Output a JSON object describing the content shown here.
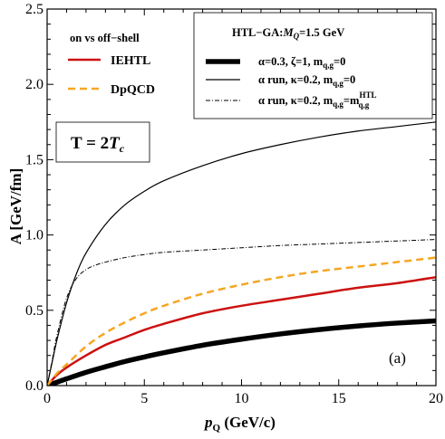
{
  "chart_data": {
    "type": "line",
    "xlabel_main": "p",
    "xlabel_sub": "Q",
    "xlabel_unit": " (GeV/c)",
    "ylabel": "A [GeV/fm]",
    "xlim": [
      0,
      20
    ],
    "ylim": [
      0,
      2.5
    ],
    "xticks": [
      "0",
      "5",
      "10",
      "15",
      "20"
    ],
    "yticks": [
      "0.0",
      "0.5",
      "1.0",
      "1.5",
      "2.0",
      "2.5"
    ],
    "panel_label": "(a)",
    "temperature_label": {
      "main": "T = 2",
      "var": "T",
      "sub": "c"
    },
    "legend_left": {
      "title": "on vs off−shell",
      "entries": [
        {
          "name": "IEHTL",
          "color": "#cc1111",
          "dash": "solid"
        },
        {
          "name": "DpQCD",
          "color": "#f5a623",
          "dash": "dashed"
        }
      ]
    },
    "legend_right": {
      "title_pre": "HTL−GA:",
      "title_var": "M",
      "title_sub": "Q",
      "title_post": "=1.5 GeV",
      "entries": [
        {
          "text": "α=0.3, ζ=1, m",
          "sub": "q,g",
          "post": "=0",
          "sup": "",
          "style": "thick"
        },
        {
          "text": "α run, κ=0.2, m",
          "sub": "q,g",
          "post": "=0",
          "sup": "",
          "style": "thin"
        },
        {
          "text": "α run, κ=0.2, m",
          "sub": "q,g",
          "post": "=m",
          "sup": "HTL",
          "sub2": "q,g",
          "style": "dashdot"
        }
      ]
    },
    "series": [
      {
        "name": "α=0.3, ζ=1, m_{q,g}=0",
        "color": "#000000",
        "width": 5.5,
        "dash": "",
        "x": [
          0,
          0.5,
          1,
          2,
          3,
          4,
          5,
          6,
          8,
          10,
          12,
          14,
          16,
          18,
          20
        ],
        "y": [
          0,
          0.022,
          0.045,
          0.088,
          0.125,
          0.16,
          0.19,
          0.218,
          0.268,
          0.308,
          0.343,
          0.372,
          0.396,
          0.415,
          0.43
        ]
      },
      {
        "name": "α run, κ=0.2, m_{q,g}=0",
        "color": "#000000",
        "width": 1.2,
        "dash": "",
        "x": [
          0,
          0.25,
          0.5,
          1,
          1.5,
          2,
          3,
          4,
          5,
          6,
          8,
          10,
          12,
          14,
          16,
          18,
          20
        ],
        "y": [
          0,
          0.15,
          0.3,
          0.55,
          0.74,
          0.88,
          1.07,
          1.2,
          1.29,
          1.36,
          1.46,
          1.54,
          1.6,
          1.65,
          1.69,
          1.72,
          1.75
        ]
      },
      {
        "name": "α run, κ=0.2, m_{q,g}=m_{q,g}^{HTL}",
        "color": "#000000",
        "width": 1.0,
        "dash": "5,2,1,2",
        "x": [
          0,
          0.25,
          0.5,
          1,
          1.5,
          2,
          2.5,
          3,
          4,
          5,
          6,
          8,
          10,
          12,
          14,
          16,
          18,
          20
        ],
        "y": [
          0,
          0.16,
          0.33,
          0.58,
          0.71,
          0.77,
          0.8,
          0.82,
          0.85,
          0.87,
          0.885,
          0.9,
          0.915,
          0.93,
          0.94,
          0.95,
          0.96,
          0.97
        ]
      },
      {
        "name": "IEHTL",
        "color": "#cc1111",
        "width": 2.5,
        "dash": "",
        "x": [
          0,
          0.5,
          1,
          2,
          3,
          4,
          5,
          6,
          8,
          10,
          12,
          14,
          16,
          18,
          20
        ],
        "y": [
          0,
          0.07,
          0.12,
          0.2,
          0.27,
          0.32,
          0.37,
          0.41,
          0.48,
          0.53,
          0.57,
          0.61,
          0.65,
          0.68,
          0.72
        ]
      },
      {
        "name": "DpQCD",
        "color": "#f5a623",
        "width": 2.5,
        "dash": "8,5",
        "x": [
          0,
          0.5,
          1,
          2,
          3,
          4,
          5,
          6,
          8,
          10,
          12,
          14,
          16,
          18,
          20
        ],
        "y": [
          0,
          0.08,
          0.14,
          0.26,
          0.35,
          0.42,
          0.48,
          0.53,
          0.61,
          0.67,
          0.72,
          0.76,
          0.79,
          0.82,
          0.85
        ]
      }
    ]
  }
}
